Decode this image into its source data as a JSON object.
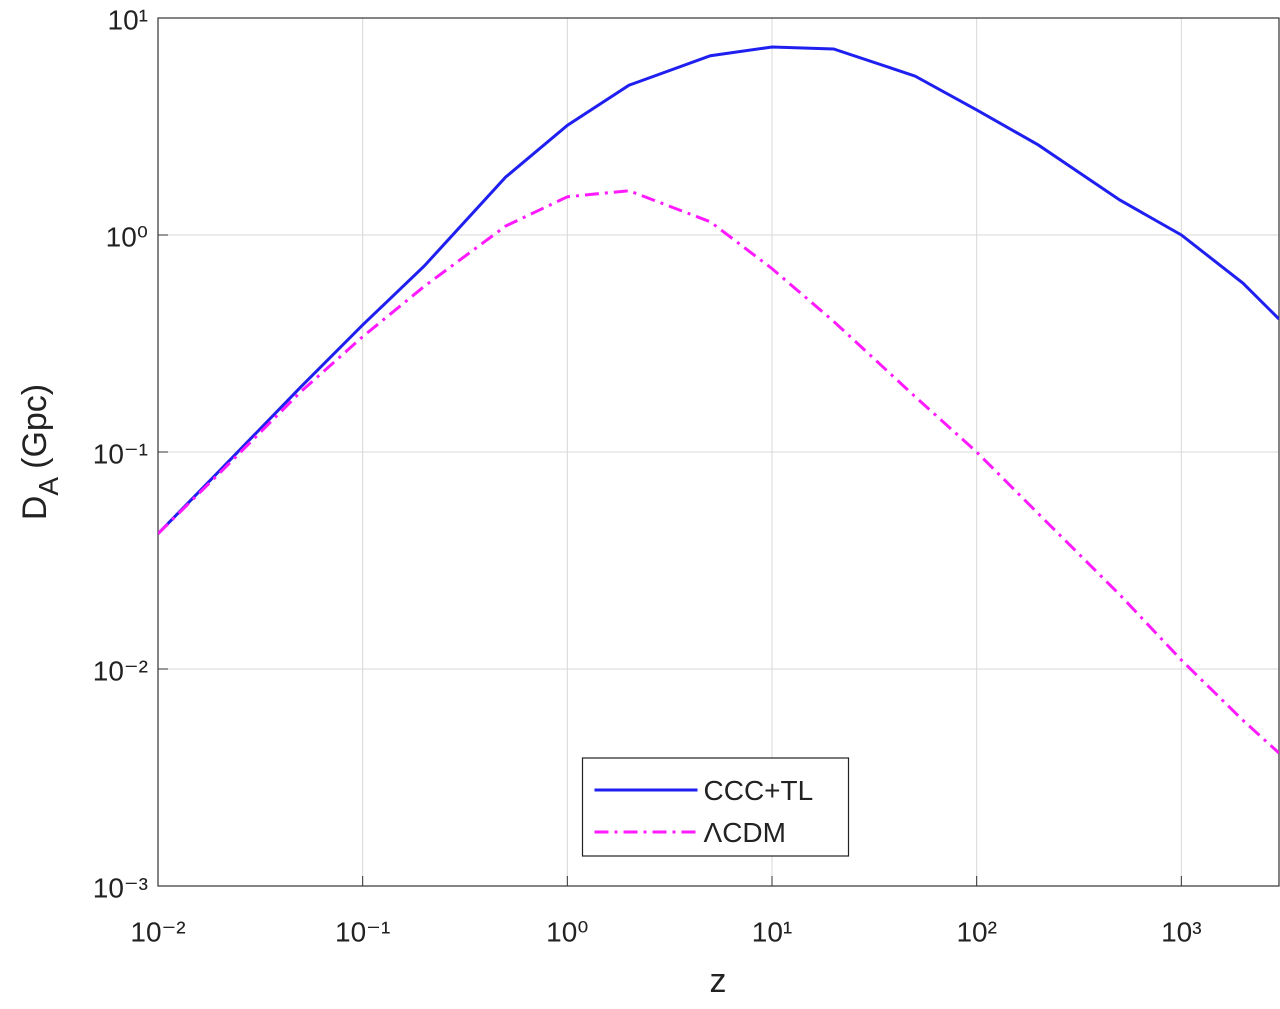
{
  "chart_data": {
    "type": "line",
    "xlabel": "z",
    "ylabel": {
      "text": "D",
      "subscript": "A",
      "unit": "(Gpc)"
    },
    "x": [
      0.01,
      0.02,
      0.05,
      0.1,
      0.2,
      0.5,
      1,
      2,
      5,
      10,
      20,
      50,
      100,
      200,
      500,
      1000,
      2000,
      3000
    ],
    "series": [
      {
        "name": "CCC+TL",
        "color": "#1f1ff0",
        "dash": "solid",
        "values": [
          0.042,
          0.082,
          0.2,
          0.385,
          0.72,
          1.85,
          3.2,
          4.9,
          6.7,
          7.35,
          7.2,
          5.4,
          3.77,
          2.6,
          1.45,
          1.0,
          0.6,
          0.41
        ]
      },
      {
        "name": "ΛCDM",
        "color": "#ff1aff",
        "dash": "dashdot",
        "values": [
          0.042,
          0.08,
          0.19,
          0.34,
          0.58,
          1.1,
          1.5,
          1.6,
          1.15,
          0.7,
          0.4,
          0.18,
          0.1,
          0.052,
          0.022,
          0.011,
          0.0058,
          0.0041
        ]
      }
    ],
    "xscale": "log",
    "yscale": "log",
    "xlim": [
      0.01,
      3000
    ],
    "ylim": [
      0.001,
      10
    ],
    "xticks": [
      {
        "value": 0.01,
        "label": "10⁻²"
      },
      {
        "value": 0.1,
        "label": "10⁻¹"
      },
      {
        "value": 1,
        "label": "10⁰"
      },
      {
        "value": 10,
        "label": "10¹"
      },
      {
        "value": 100,
        "label": "10²"
      },
      {
        "value": 1000,
        "label": "10³"
      }
    ],
    "yticks": [
      {
        "value": 0.001,
        "label": "10⁻³"
      },
      {
        "value": 0.01,
        "label": "10⁻²"
      },
      {
        "value": 0.1,
        "label": "10⁻¹"
      },
      {
        "value": 1,
        "label": "10⁰"
      },
      {
        "value": 10,
        "label": "10¹"
      }
    ],
    "grid": true,
    "legend": "south"
  }
}
